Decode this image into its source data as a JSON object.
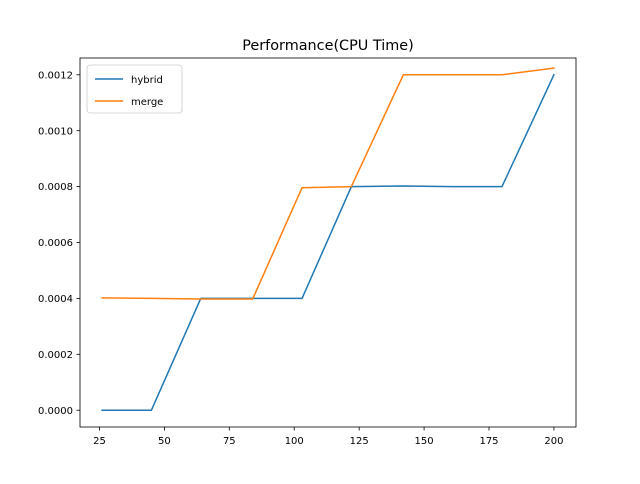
{
  "chart_data": {
    "type": "line",
    "title": "Performance(CPU Time)",
    "xlabel": "",
    "ylabel": "",
    "xlim": [
      17.5,
      208.5
    ],
    "ylim": [
      -6e-05,
      0.00126
    ],
    "xticks": [
      25,
      50,
      75,
      100,
      125,
      150,
      175,
      200
    ],
    "xtick_labels": [
      "25",
      "50",
      "75",
      "100",
      "125",
      "150",
      "175",
      "200"
    ],
    "yticks": [
      0.0,
      0.0002,
      0.0004,
      0.0006,
      0.0008,
      0.001,
      0.0012
    ],
    "ytick_labels": [
      "0.0000",
      "0.0002",
      "0.0004",
      "0.0006",
      "0.0008",
      "0.0010",
      "0.0012"
    ],
    "grid": false,
    "legend_position": "upper-left",
    "series": [
      {
        "name": "hybrid",
        "color": "#1f77b4",
        "x": [
          26,
          45,
          64,
          84,
          103,
          122,
          142,
          161,
          180,
          200
        ],
        "y": [
          0.0,
          0.0,
          0.0004,
          0.0004,
          0.0004,
          0.0008,
          0.000802,
          0.0008,
          0.0008,
          0.0012
        ]
      },
      {
        "name": "merge",
        "color": "#ff7f0e",
        "x": [
          26,
          45,
          64,
          84,
          103,
          122,
          142,
          161,
          180,
          200
        ],
        "y": [
          0.000402,
          0.0004,
          0.000398,
          0.000398,
          0.000796,
          0.0008,
          0.0012,
          0.0012,
          0.0012,
          0.001224
        ]
      }
    ]
  }
}
